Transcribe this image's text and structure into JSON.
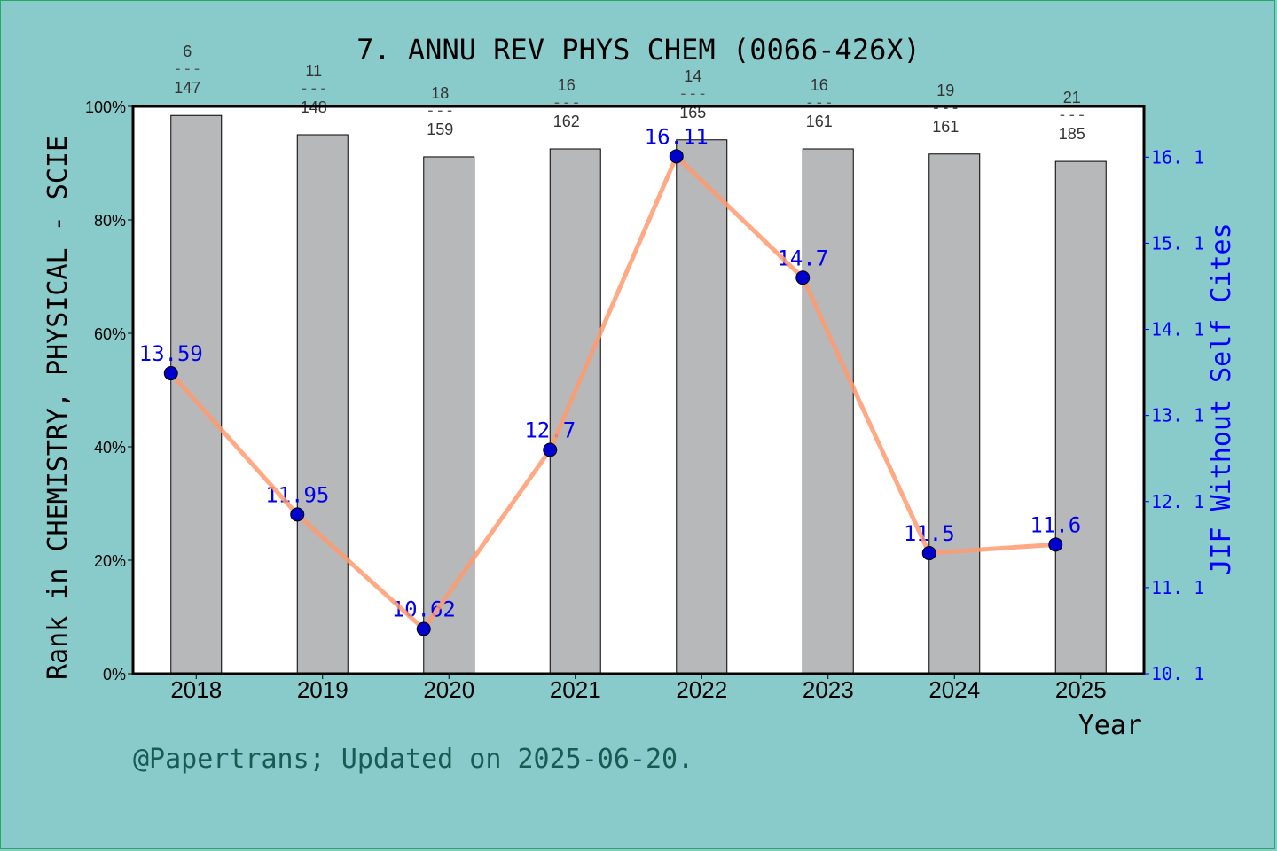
{
  "chart_data": {
    "type": "bar+line",
    "title": "7. ANNU REV PHYS CHEM (0066-426X)",
    "xlabel": "Year",
    "ylabel_left": "Rank in CHEMISTRY, PHYSICAL - SCIE",
    "ylabel_right": "JIF Without Self Cites",
    "categories": [
      "2018",
      "2019",
      "2020",
      "2021",
      "2022",
      "2023",
      "2024",
      "2025"
    ],
    "left_axis": {
      "range": [
        0,
        100
      ],
      "ticks": [
        "0%",
        "20%",
        "40%",
        "60%",
        "80%",
        "100%"
      ]
    },
    "right_axis": {
      "range": [
        10.1,
        16.69
      ],
      "ticks": [
        "10.1",
        "11.1",
        "12.1",
        "13.1",
        "14.1",
        "15.1",
        "16.1"
      ]
    },
    "bars": {
      "percentile": [
        98.4,
        95.0,
        91.1,
        92.5,
        94.1,
        92.5,
        91.6,
        90.3
      ],
      "rank": [
        "6",
        "11",
        "18",
        "16",
        "14",
        "16",
        "19",
        "21"
      ],
      "total": [
        "147",
        "148",
        "159",
        "162",
        "165",
        "161",
        "161",
        "185"
      ]
    },
    "line": {
      "values": [
        13.59,
        11.95,
        10.62,
        12.7,
        16.11,
        14.7,
        11.5,
        11.6
      ],
      "labels": [
        "13.59",
        "11.95",
        "10.62",
        "12.7",
        "16.11",
        "14.7",
        "11.5",
        "11.6"
      ]
    },
    "grid": false,
    "colors": {
      "background": "#88cbca",
      "bar": "#b7b8ba",
      "line": "#ff9a70",
      "marker": "#0000cc",
      "right_axis": "#0000ff"
    }
  },
  "footer": "@Papertrans; Updated on 2025-06-20."
}
